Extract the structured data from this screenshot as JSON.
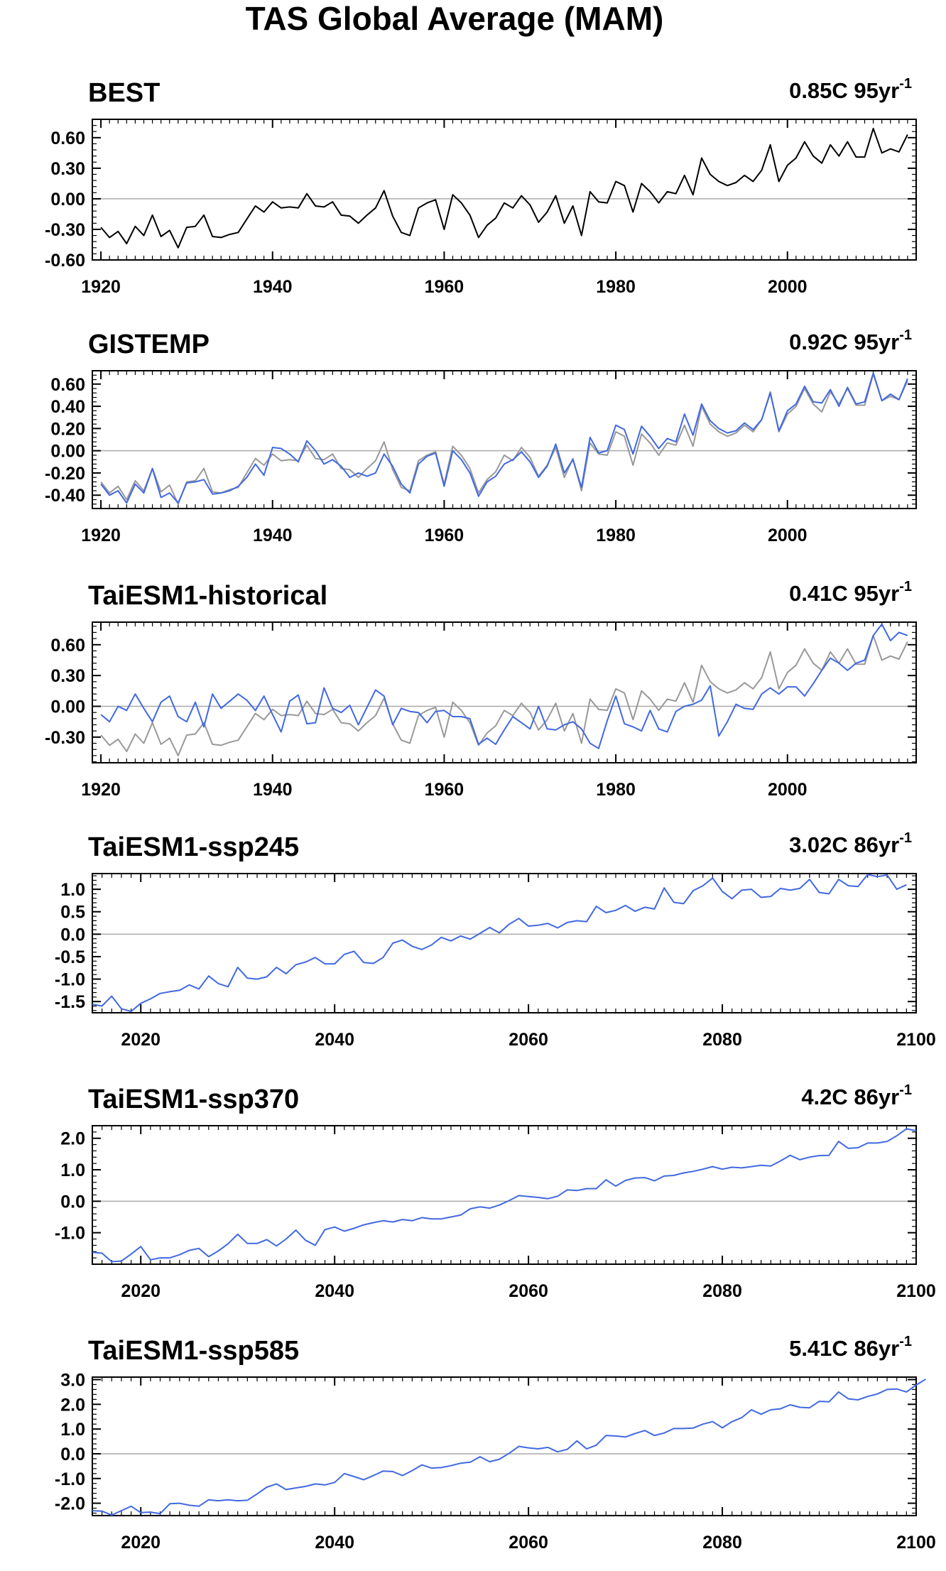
{
  "figure": {
    "title": "TAS Global Average (MAM)"
  },
  "colors": {
    "observed": "#000000",
    "observed_ref": "#999999",
    "model": "#4169e1",
    "zero_line": "#aaaaaa"
  },
  "chart_data": [
    {
      "type": "line",
      "title": "BEST",
      "trend": "0.85C 95yr",
      "trend_exp": "-1",
      "xlim": [
        1919,
        2015
      ],
      "ylim": [
        -0.6,
        0.78
      ],
      "yticks": [
        -0.6,
        -0.3,
        0.0,
        0.3,
        0.6
      ],
      "ytick_labels": [
        "-0.60",
        "-0.30",
        "0.00",
        "0.30",
        "0.60"
      ],
      "xticks": [
        1920,
        1940,
        1960,
        1980,
        2000
      ],
      "xtick_labels": [
        "1920",
        "1940",
        "1960",
        "1980",
        "2000"
      ],
      "x_start": 1920,
      "series": [
        {
          "role": "primary",
          "color": "#000000",
          "values": [
            -0.28,
            -0.38,
            -0.32,
            -0.44,
            -0.27,
            -0.36,
            -0.16,
            -0.37,
            -0.31,
            -0.48,
            -0.28,
            -0.27,
            -0.16,
            -0.37,
            -0.38,
            -0.35,
            -0.33,
            -0.2,
            -0.07,
            -0.13,
            -0.03,
            -0.09,
            -0.08,
            -0.09,
            0.05,
            -0.07,
            -0.08,
            -0.03,
            -0.16,
            -0.17,
            -0.24,
            -0.16,
            -0.09,
            0.08,
            -0.17,
            -0.33,
            -0.36,
            -0.09,
            -0.04,
            -0.01,
            -0.3,
            0.04,
            -0.04,
            -0.16,
            -0.38,
            -0.26,
            -0.19,
            -0.04,
            -0.09,
            0.03,
            -0.06,
            -0.23,
            -0.13,
            0.03,
            -0.24,
            -0.07,
            -0.36,
            0.07,
            -0.03,
            -0.04,
            0.17,
            0.13,
            -0.13,
            0.15,
            0.07,
            -0.04,
            0.07,
            0.05,
            0.23,
            0.04,
            0.4,
            0.24,
            0.17,
            0.13,
            0.16,
            0.23,
            0.17,
            0.28,
            0.53,
            0.17,
            0.33,
            0.4,
            0.56,
            0.42,
            0.35,
            0.53,
            0.42,
            0.56,
            0.41,
            0.41,
            0.69,
            0.45,
            0.49,
            0.46,
            0.63
          ]
        }
      ]
    },
    {
      "type": "line",
      "title": "GISTEMP",
      "trend": "0.92C 95yr",
      "trend_exp": "-1",
      "xlim": [
        1919,
        2015
      ],
      "ylim": [
        -0.52,
        0.72
      ],
      "yticks": [
        -0.4,
        -0.2,
        0.0,
        0.2,
        0.4,
        0.6
      ],
      "ytick_labels": [
        "-0.40",
        "-0.20",
        "0.00",
        "0.20",
        "0.40",
        "0.60"
      ],
      "xticks": [
        1920,
        1940,
        1960,
        1980,
        2000
      ],
      "xtick_labels": [
        "1920",
        "1940",
        "1960",
        "1980",
        "2000"
      ],
      "x_start": 1920,
      "series": [
        {
          "role": "reference",
          "color": "#999999",
          "values": [
            -0.28,
            -0.38,
            -0.32,
            -0.44,
            -0.27,
            -0.36,
            -0.16,
            -0.37,
            -0.31,
            -0.48,
            -0.28,
            -0.27,
            -0.16,
            -0.37,
            -0.38,
            -0.35,
            -0.33,
            -0.2,
            -0.07,
            -0.13,
            -0.03,
            -0.09,
            -0.08,
            -0.09,
            0.05,
            -0.07,
            -0.08,
            -0.03,
            -0.16,
            -0.17,
            -0.24,
            -0.16,
            -0.09,
            0.08,
            -0.17,
            -0.33,
            -0.36,
            -0.09,
            -0.04,
            -0.01,
            -0.3,
            0.04,
            -0.04,
            -0.16,
            -0.38,
            -0.26,
            -0.19,
            -0.04,
            -0.09,
            0.03,
            -0.06,
            -0.23,
            -0.13,
            0.03,
            -0.24,
            -0.07,
            -0.36,
            0.07,
            -0.03,
            -0.04,
            0.17,
            0.13,
            -0.13,
            0.15,
            0.07,
            -0.04,
            0.07,
            0.05,
            0.23,
            0.04,
            0.4,
            0.24,
            0.17,
            0.13,
            0.16,
            0.23,
            0.17,
            0.28,
            0.53,
            0.17,
            0.33,
            0.4,
            0.56,
            0.42,
            0.35,
            0.53,
            0.42,
            0.56,
            0.41,
            0.41,
            0.69,
            0.45,
            0.49,
            0.46,
            0.63
          ]
        },
        {
          "role": "primary",
          "color": "#4169e1",
          "values": [
            -0.3,
            -0.4,
            -0.36,
            -0.47,
            -0.3,
            -0.38,
            -0.16,
            -0.42,
            -0.38,
            -0.47,
            -0.29,
            -0.28,
            -0.26,
            -0.39,
            -0.38,
            -0.36,
            -0.32,
            -0.24,
            -0.12,
            -0.22,
            0.03,
            0.02,
            -0.03,
            -0.1,
            0.09,
            0.0,
            -0.12,
            -0.08,
            -0.14,
            -0.24,
            -0.2,
            -0.23,
            -0.2,
            -0.03,
            -0.14,
            -0.3,
            -0.38,
            -0.12,
            -0.05,
            -0.02,
            -0.32,
            0.0,
            -0.08,
            -0.2,
            -0.41,
            -0.28,
            -0.23,
            -0.12,
            -0.08,
            -0.01,
            -0.1,
            -0.24,
            -0.14,
            0.06,
            -0.2,
            -0.08,
            -0.33,
            0.12,
            -0.02,
            0.0,
            0.23,
            0.19,
            -0.03,
            0.22,
            0.13,
            0.02,
            0.11,
            0.08,
            0.33,
            0.14,
            0.42,
            0.27,
            0.2,
            0.16,
            0.18,
            0.25,
            0.19,
            0.28,
            0.52,
            0.18,
            0.36,
            0.42,
            0.58,
            0.44,
            0.43,
            0.55,
            0.4,
            0.57,
            0.42,
            0.44,
            0.7,
            0.45,
            0.51,
            0.46,
            0.65
          ]
        }
      ]
    },
    {
      "type": "line",
      "title": "TaiESM1-historical",
      "trend": "0.41C 95yr",
      "trend_exp": "-1",
      "xlim": [
        1919,
        2015
      ],
      "ylim": [
        -0.55,
        0.82
      ],
      "yticks": [
        -0.3,
        0.0,
        0.3,
        0.6
      ],
      "ytick_labels": [
        "-0.30",
        "0.00",
        "0.30",
        "0.60"
      ],
      "xticks": [
        1920,
        1940,
        1960,
        1980,
        2000
      ],
      "xtick_labels": [
        "1920",
        "1940",
        "1960",
        "1980",
        "2000"
      ],
      "x_start": 1920,
      "series": [
        {
          "role": "reference",
          "color": "#999999",
          "values": [
            -0.28,
            -0.38,
            -0.32,
            -0.44,
            -0.27,
            -0.36,
            -0.16,
            -0.37,
            -0.31,
            -0.48,
            -0.28,
            -0.27,
            -0.16,
            -0.37,
            -0.38,
            -0.35,
            -0.33,
            -0.2,
            -0.07,
            -0.13,
            -0.03,
            -0.09,
            -0.08,
            -0.09,
            0.05,
            -0.07,
            -0.08,
            -0.03,
            -0.16,
            -0.17,
            -0.24,
            -0.16,
            -0.09,
            0.08,
            -0.17,
            -0.33,
            -0.36,
            -0.09,
            -0.04,
            -0.01,
            -0.3,
            0.04,
            -0.04,
            -0.16,
            -0.38,
            -0.26,
            -0.19,
            -0.04,
            -0.09,
            0.03,
            -0.06,
            -0.23,
            -0.13,
            0.03,
            -0.24,
            -0.07,
            -0.36,
            0.07,
            -0.03,
            -0.04,
            0.17,
            0.13,
            -0.13,
            0.15,
            0.07,
            -0.04,
            0.07,
            0.05,
            0.23,
            0.04,
            0.4,
            0.24,
            0.17,
            0.13,
            0.16,
            0.23,
            0.17,
            0.28,
            0.53,
            0.17,
            0.33,
            0.4,
            0.56,
            0.42,
            0.35,
            0.53,
            0.42,
            0.56,
            0.41,
            0.41,
            0.69,
            0.45,
            0.49,
            0.46,
            0.63
          ]
        },
        {
          "role": "primary",
          "color": "#4169e1",
          "values": [
            -0.08,
            -0.15,
            0.0,
            -0.04,
            0.12,
            -0.02,
            -0.15,
            0.04,
            0.1,
            -0.1,
            -0.15,
            0.04,
            -0.2,
            0.12,
            -0.02,
            0.05,
            0.12,
            0.06,
            -0.04,
            0.1,
            -0.08,
            -0.25,
            0.05,
            0.11,
            -0.17,
            -0.16,
            0.18,
            -0.02,
            -0.06,
            0.01,
            -0.18,
            -0.01,
            0.16,
            0.1,
            -0.18,
            -0.02,
            -0.05,
            -0.06,
            -0.16,
            -0.05,
            -0.04,
            -0.1,
            -0.1,
            -0.12,
            -0.37,
            -0.31,
            -0.37,
            -0.23,
            -0.1,
            -0.16,
            -0.22,
            0.0,
            -0.22,
            -0.23,
            -0.18,
            -0.15,
            -0.22,
            -0.36,
            -0.41,
            -0.14,
            0.1,
            -0.17,
            -0.2,
            -0.24,
            -0.04,
            -0.22,
            -0.25,
            -0.05,
            0.0,
            0.02,
            0.06,
            0.2,
            -0.29,
            -0.15,
            0.02,
            -0.02,
            -0.03,
            0.12,
            0.18,
            0.12,
            0.19,
            0.19,
            0.1,
            0.22,
            0.35,
            0.47,
            0.42,
            0.35,
            0.42,
            0.45,
            0.69,
            0.8,
            0.64,
            0.72,
            0.69
          ]
        }
      ]
    },
    {
      "type": "line",
      "title": "TaiESM1-ssp245",
      "trend": "3.02C 86yr",
      "trend_exp": "-1",
      "xlim": [
        2015,
        2100
      ],
      "ylim": [
        -1.75,
        1.35
      ],
      "yticks": [
        -1.5,
        -1.0,
        -0.5,
        0.0,
        0.5,
        1.0
      ],
      "ytick_labels": [
        "-1.5",
        "-1.0",
        "-0.5",
        "0.0",
        "0.5",
        "1.0"
      ],
      "xticks": [
        2020,
        2040,
        2060,
        2080,
        2100
      ],
      "xtick_labels": [
        "2020",
        "2040",
        "2060",
        "2080",
        "2100"
      ],
      "x_start": 2015,
      "series": [
        {
          "role": "primary",
          "color": "#4169e1",
          "values": [
            -1.56,
            -1.6,
            -1.38,
            -1.66,
            -1.72,
            -1.54,
            -1.44,
            -1.32,
            -1.28,
            -1.25,
            -1.13,
            -1.22,
            -0.93,
            -1.1,
            -1.17,
            -0.74,
            -0.98,
            -1.0,
            -0.95,
            -0.74,
            -0.88,
            -0.68,
            -0.62,
            -0.52,
            -0.66,
            -0.66,
            -0.45,
            -0.38,
            -0.63,
            -0.65,
            -0.52,
            -0.2,
            -0.13,
            -0.27,
            -0.34,
            -0.24,
            -0.07,
            -0.15,
            -0.04,
            -0.11,
            0.02,
            0.15,
            0.03,
            0.22,
            0.35,
            0.18,
            0.2,
            0.24,
            0.14,
            0.26,
            0.3,
            0.28,
            0.62,
            0.48,
            0.53,
            0.64,
            0.51,
            0.6,
            0.56,
            1.03,
            0.71,
            0.68,
            0.97,
            1.08,
            1.25,
            0.95,
            0.79,
            0.98,
            1.0,
            0.82,
            0.84,
            1.02,
            0.98,
            1.02,
            1.22,
            0.93,
            0.9,
            1.22,
            1.08,
            1.06,
            1.33,
            1.28,
            1.32,
            1.0,
            1.1
          ]
        }
      ]
    },
    {
      "type": "line",
      "title": "TaiESM1-ssp370",
      "trend": "4.2C 86yr",
      "trend_exp": "-1",
      "xlim": [
        2015,
        2100
      ],
      "ylim": [
        -2.0,
        2.4
      ],
      "yticks": [
        -1.0,
        0.0,
        1.0,
        2.0
      ],
      "ytick_labels": [
        "-1.0",
        "0.0",
        "1.0",
        "2.0"
      ],
      "xticks": [
        2020,
        2040,
        2060,
        2080,
        2100
      ],
      "xtick_labels": [
        "2020",
        "2040",
        "2060",
        "2080",
        "2100"
      ],
      "x_start": 2015,
      "series": [
        {
          "role": "primary",
          "color": "#4169e1",
          "values": [
            -1.62,
            -1.65,
            -1.92,
            -1.9,
            -1.68,
            -1.44,
            -1.86,
            -1.8,
            -1.8,
            -1.7,
            -1.56,
            -1.5,
            -1.76,
            -1.58,
            -1.35,
            -1.05,
            -1.34,
            -1.34,
            -1.22,
            -1.42,
            -1.2,
            -0.92,
            -1.24,
            -1.4,
            -0.9,
            -0.82,
            -0.95,
            -0.86,
            -0.75,
            -0.68,
            -0.62,
            -0.66,
            -0.58,
            -0.62,
            -0.52,
            -0.56,
            -0.56,
            -0.5,
            -0.44,
            -0.24,
            -0.18,
            -0.22,
            -0.12,
            0.02,
            0.18,
            0.15,
            0.12,
            0.08,
            0.16,
            0.36,
            0.34,
            0.4,
            0.4,
            0.68,
            0.48,
            0.66,
            0.74,
            0.75,
            0.65,
            0.8,
            0.82,
            0.9,
            0.95,
            1.02,
            1.1,
            1.02,
            1.08,
            1.06,
            1.1,
            1.14,
            1.12,
            1.28,
            1.46,
            1.32,
            1.4,
            1.45,
            1.46,
            1.9,
            1.68,
            1.7,
            1.85,
            1.85,
            1.9,
            2.08,
            2.3,
            2.24
          ]
        }
      ]
    },
    {
      "type": "line",
      "title": "TaiESM1-ssp585",
      "trend": "5.41C 86yr",
      "trend_exp": "-1",
      "xlim": [
        2015,
        2100
      ],
      "ylim": [
        -2.5,
        3.1
      ],
      "yticks": [
        -2.0,
        -1.0,
        0.0,
        1.0,
        2.0,
        3.0
      ],
      "ytick_labels": [
        "-2.0",
        "-1.0",
        "0.0",
        "1.0",
        "2.0",
        "3.0"
      ],
      "xticks": [
        2020,
        2040,
        2060,
        2080,
        2100
      ],
      "xtick_labels": [
        "2020",
        "2040",
        "2060",
        "2080",
        "2100"
      ],
      "x_start": 2015,
      "series": [
        {
          "role": "primary",
          "color": "#4169e1",
          "values": [
            -2.3,
            -2.32,
            -2.48,
            -2.3,
            -2.12,
            -2.38,
            -2.36,
            -2.42,
            -2.02,
            -2.0,
            -2.08,
            -2.12,
            -1.86,
            -1.9,
            -1.86,
            -1.9,
            -1.88,
            -1.62,
            -1.35,
            -1.22,
            -1.45,
            -1.38,
            -1.32,
            -1.22,
            -1.26,
            -1.16,
            -0.8,
            -0.92,
            -1.05,
            -0.88,
            -0.7,
            -0.72,
            -0.88,
            -0.68,
            -0.45,
            -0.58,
            -0.56,
            -0.48,
            -0.38,
            -0.34,
            -0.12,
            -0.32,
            -0.22,
            0.02,
            0.3,
            0.24,
            0.2,
            0.26,
            0.08,
            0.18,
            0.52,
            0.2,
            0.35,
            0.74,
            0.72,
            0.68,
            0.82,
            0.94,
            0.74,
            0.84,
            1.02,
            1.02,
            1.04,
            1.2,
            1.3,
            1.05,
            1.3,
            1.46,
            1.78,
            1.6,
            1.78,
            1.82,
            1.98,
            1.88,
            1.86,
            2.12,
            2.1,
            2.5,
            2.22,
            2.18,
            2.32,
            2.42,
            2.6,
            2.62,
            2.5,
            2.78,
            3.02
          ]
        }
      ]
    }
  ]
}
